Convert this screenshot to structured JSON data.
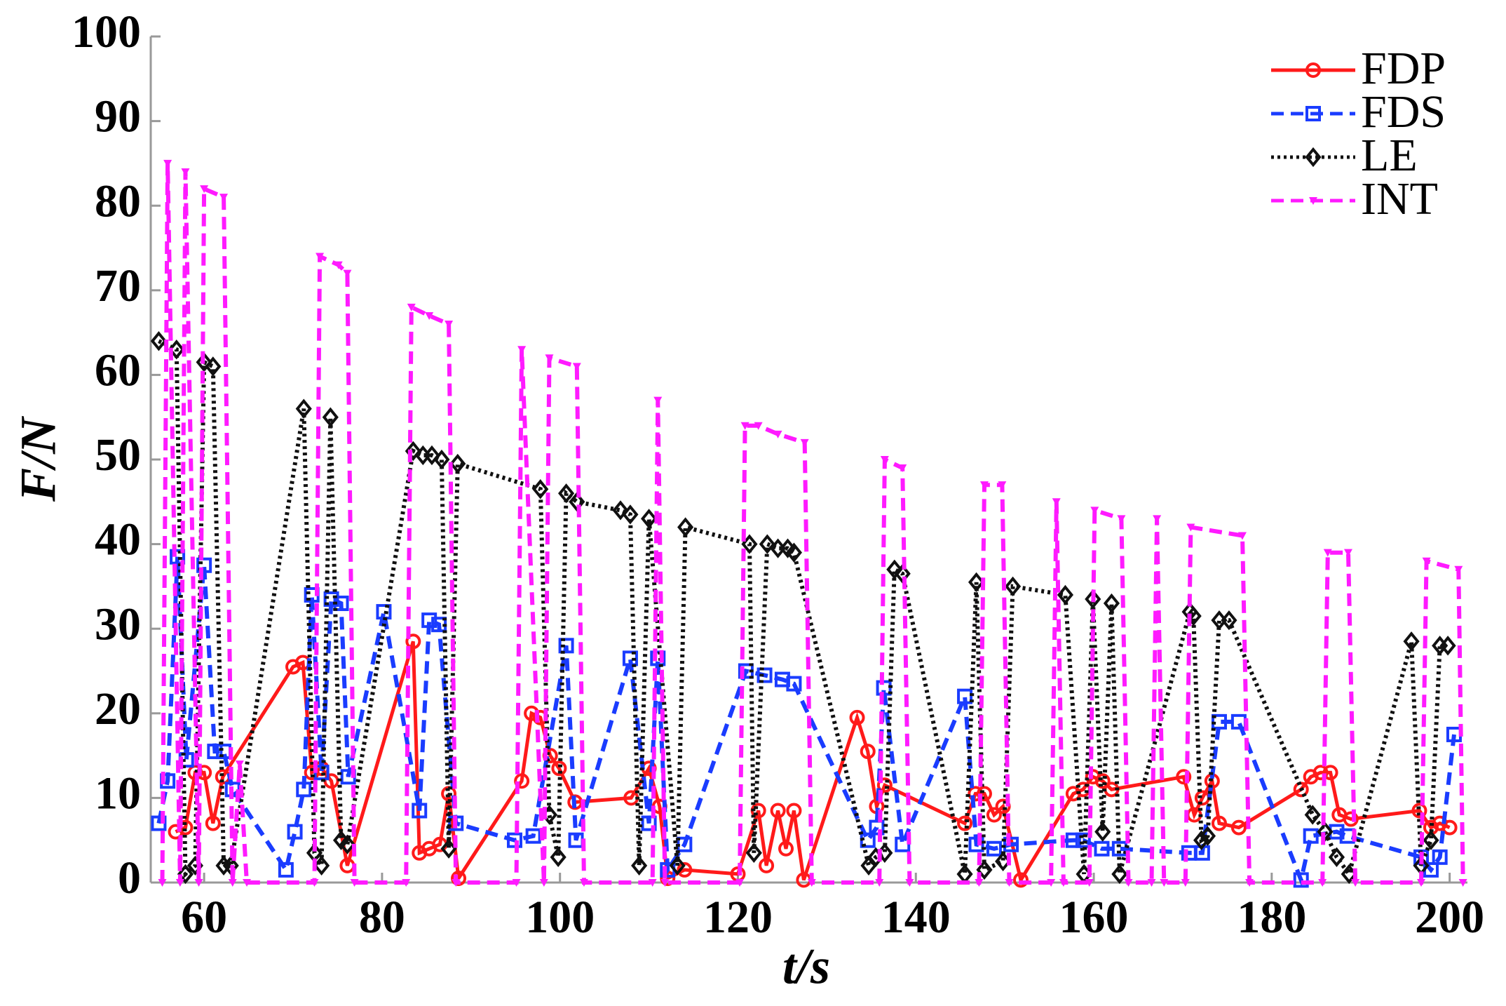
{
  "chart_data": {
    "type": "line",
    "xlabel": "t/s",
    "ylabel": "F/N",
    "xlim": [
      54,
      202
    ],
    "ylim": [
      0,
      100
    ],
    "xticks": [
      60,
      80,
      100,
      120,
      140,
      160,
      180,
      200
    ],
    "yticks": [
      0,
      10,
      20,
      30,
      40,
      50,
      60,
      70,
      80,
      90,
      100
    ],
    "legend": "upper right",
    "series": [
      {
        "name": "FDP",
        "color": "#ff1a1a",
        "linestyle": "solid",
        "marker": "circle",
        "x": [
          56.8,
          57.9,
          59,
          60,
          61,
          62.1,
          70,
          71.1,
          72.1,
          73.2,
          74.3,
          76.1,
          83.5,
          84.2,
          85.3,
          86.5,
          87.5,
          88.6,
          95.7,
          96.8,
          97.8,
          98.9,
          99.9,
          101.7,
          108,
          110,
          111.2,
          112.1,
          114,
          120,
          122.3,
          123.2,
          124.5,
          125.4,
          126.3,
          127.4,
          133.4,
          134.6,
          135.6,
          136.5,
          145.5,
          146.7,
          147.7,
          148.8,
          149.8,
          151.8,
          157.7,
          158.8,
          159.9,
          161,
          162,
          170.1,
          171.3,
          172.2,
          173.3,
          174.1,
          176.3,
          183.3,
          184.4,
          185.5,
          186.6,
          187.6,
          188.9,
          196.6,
          197.9,
          198.9,
          200
        ],
        "values": [
          6,
          6.5,
          13,
          13,
          7,
          12.5,
          25.5,
          26,
          13,
          13.5,
          12,
          2,
          28.5,
          3.5,
          4,
          4.5,
          10.5,
          0.5,
          12,
          20,
          19.5,
          15,
          13.5,
          9.5,
          10,
          13.5,
          9,
          0.5,
          1.5,
          1,
          8.5,
          2,
          8.5,
          4,
          8.5,
          0.3,
          19.5,
          15.5,
          9,
          11.5,
          7,
          10.5,
          10.5,
          8,
          9,
          0.3,
          10.5,
          11,
          12.5,
          12,
          11,
          12.5,
          8,
          10,
          12,
          7,
          6.5,
          11,
          12.5,
          13,
          13,
          8,
          7.5,
          8.5,
          6.5,
          7,
          6.5
        ]
      },
      {
        "name": "FDS",
        "color": "#1a3cff",
        "linestyle": "dashed",
        "marker": "square",
        "x": [
          54.9,
          55.9,
          57,
          58,
          60,
          61.2,
          62.2,
          63.2,
          69.2,
          70.2,
          71.2,
          72.1,
          73.2,
          74.3,
          75.4,
          76.2,
          80.2,
          84.2,
          85.3,
          86.4,
          88.3,
          94.9,
          97,
          100.7,
          101.8,
          107.9,
          110,
          111,
          112.1,
          114,
          120.9,
          123,
          125,
          126.3,
          134.6,
          135.6,
          136.4,
          138.5,
          145.5,
          146.8,
          148.8,
          150.7,
          157.7,
          158.8,
          160.9,
          162.9,
          170.7,
          172.2,
          174.1,
          176.3,
          183.3,
          184.4,
          187.3,
          188.5,
          196.8,
          197.9,
          198.9,
          200.5
        ],
        "values": [
          7,
          12,
          38.5,
          14.5,
          37.5,
          15.5,
          15.5,
          11,
          1.5,
          6,
          11,
          34,
          13,
          33.5,
          33,
          12.5,
          32,
          8.5,
          31,
          30.5,
          7,
          5,
          5.5,
          28,
          5,
          26.5,
          7,
          26.5,
          1.5,
          4.5,
          25,
          24.5,
          24,
          23.5,
          5,
          6.5,
          23,
          4.5,
          22,
          4.5,
          4,
          4.5,
          5,
          5,
          4,
          4,
          3.5,
          3.5,
          19,
          19,
          0.3,
          5.5,
          6,
          5.5,
          3,
          1.5,
          3,
          17.5
        ]
      },
      {
        "name": "LE",
        "color": "#111111",
        "linestyle": "dotted",
        "marker": "diamond",
        "x": [
          54.9,
          56.9,
          57.9,
          59,
          60,
          61,
          62.2,
          63,
          71.2,
          72.4,
          73.2,
          74.2,
          75.4,
          76.1,
          83.5,
          84.6,
          85.6,
          86.7,
          87.5,
          88.5,
          97.8,
          98.8,
          99.8,
          100.7,
          101.9,
          106.8,
          107.9,
          108.9,
          110,
          113.2,
          114.1,
          121.3,
          121.8,
          123.3,
          124.5,
          125.6,
          126.3,
          134.7,
          135.5,
          136.5,
          137.6,
          138.5,
          145.5,
          146.8,
          147.7,
          149.8,
          150.9,
          156.8,
          158.9,
          159.9,
          161,
          162,
          162.9,
          170.8,
          171.2,
          172.1,
          172.8,
          174.1,
          175.2,
          184.6,
          186,
          187.3,
          188.7,
          195.7,
          196.8,
          197.9,
          198.9,
          199.8
        ],
        "values": [
          64,
          63,
          1,
          2,
          61.5,
          61,
          2,
          2,
          56,
          3.5,
          2,
          55,
          5,
          4.5,
          51,
          50.5,
          50.5,
          50,
          4,
          49.5,
          46.5,
          8,
          3,
          46,
          45,
          44,
          43.5,
          2,
          43,
          2,
          42,
          40,
          3.5,
          40,
          39.5,
          39.5,
          39,
          2,
          3,
          3.5,
          37,
          36.5,
          1,
          35.5,
          1.5,
          2.5,
          35,
          34,
          1,
          33.5,
          6,
          33,
          1,
          32,
          31.5,
          5,
          5.5,
          31,
          31,
          8,
          6,
          3,
          1,
          28.5,
          2,
          5,
          28,
          28
        ]
      },
      {
        "name": "INT",
        "color": "#ff1aff",
        "linestyle": "dashed",
        "marker": "triangle",
        "x": [
          55.3,
          55.9,
          57.3,
          57.9,
          59.4,
          60,
          62.2,
          63.2,
          64,
          64.8,
          72.4,
          73,
          75.1,
          76.1,
          76.9,
          82.7,
          83.3,
          85.3,
          87.5,
          88.3,
          95.1,
          95.7,
          98.2,
          98.8,
          101.9,
          102.7,
          110.4,
          111,
          111.8,
          120.2,
          120.8,
          122.3,
          124.5,
          127.5,
          128.3,
          135.9,
          136.5,
          138.5,
          139.3,
          147.1,
          147.7,
          149.7,
          150.5,
          155.2,
          155.8,
          156.6,
          159.5,
          160.1,
          163.1,
          163.9,
          166.5,
          167.1,
          167.9,
          170.3,
          170.9,
          176.7,
          177.5,
          185.7,
          186.3,
          188.6,
          189.4,
          196.8,
          197.4,
          201,
          201.5
        ],
        "values": [
          0,
          85,
          0,
          84,
          0,
          82,
          81,
          0,
          14,
          0,
          0,
          74,
          73,
          72,
          0,
          0,
          68,
          67,
          66,
          0,
          0,
          63,
          0,
          62,
          61,
          0,
          0,
          57,
          0,
          0,
          54,
          54,
          53,
          52,
          0,
          0,
          50,
          49,
          0,
          0,
          47,
          47,
          0,
          0,
          45,
          0,
          0,
          44,
          43,
          0,
          0,
          43,
          0,
          0,
          42,
          41,
          0,
          0,
          39,
          39,
          0,
          0,
          38,
          37,
          0
        ]
      }
    ]
  }
}
